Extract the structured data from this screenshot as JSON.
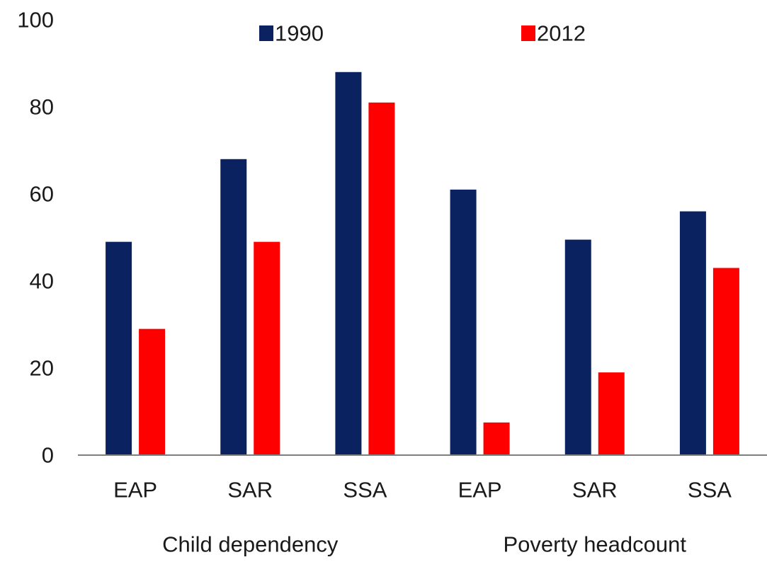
{
  "chart_data": {
    "type": "bar",
    "title": "",
    "xlabel": "",
    "ylabel": "",
    "ylim": [
      0,
      100
    ],
    "yticks": [
      0,
      20,
      40,
      60,
      80,
      100
    ],
    "grid": false,
    "legend_position": "top",
    "categories": [
      "EAP",
      "SAR",
      "SSA",
      "EAP",
      "SAR",
      "SSA"
    ],
    "groups": [
      {
        "label": "Child dependency",
        "categories": [
          "EAP",
          "SAR",
          "SSA"
        ]
      },
      {
        "label": "Poverty headcount",
        "categories": [
          "EAP",
          "SAR",
          "SSA"
        ]
      }
    ],
    "series": [
      {
        "name": "1990",
        "color": "#0b2260",
        "values": [
          49,
          68,
          88,
          61,
          49.5,
          56
        ]
      },
      {
        "name": "2012",
        "color": "#ff0000",
        "values": [
          29,
          49,
          81,
          7.5,
          19,
          43
        ]
      }
    ]
  }
}
